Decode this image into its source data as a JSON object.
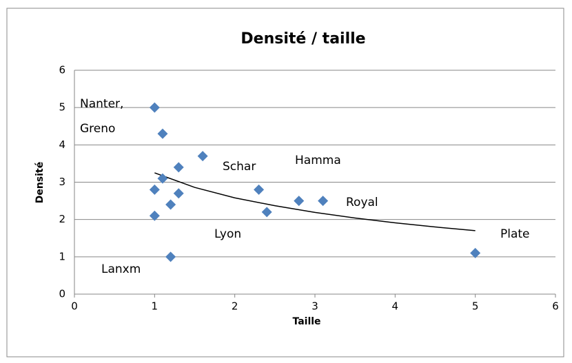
{
  "chart_data": {
    "type": "scatter",
    "title": "Densité / taille",
    "x_label": "Taille",
    "y_label": "Densité",
    "series": [
      {
        "name": "Densité",
        "color": "#4f81bd",
        "x": [
          1.0,
          1.1,
          1.6,
          1.3,
          1.1,
          1.0,
          1.3,
          1.2,
          1.0,
          1.2,
          2.3,
          2.4,
          2.8,
          3.1,
          5.0
        ],
        "values": [
          5.0,
          4.3,
          3.7,
          3.4,
          3.1,
          2.8,
          2.7,
          2.4,
          2.1,
          1.0,
          2.8,
          2.2,
          2.5,
          2.5,
          1.1
        ]
      }
    ],
    "trendline": {
      "color": "#000000",
      "x": [
        1,
        1.5,
        2,
        2.5,
        3,
        3.5,
        4,
        4.5,
        5
      ],
      "values": [
        3.25,
        2.86,
        2.58,
        2.37,
        2.19,
        2.04,
        1.91,
        1.8,
        1.7
      ]
    },
    "annotations": [
      "Nanter,",
      "Greno",
      "Schar",
      "Hamma",
      "Royal",
      "Lyon",
      "Plate",
      "Lanxm"
    ],
    "xlim": [
      0,
      6
    ],
    "xticks": [
      0,
      1,
      2,
      3,
      4,
      5,
      6
    ],
    "ylim": [
      0,
      6
    ],
    "yticks": [
      0,
      1,
      2,
      3,
      4,
      5,
      6
    ],
    "grid": true
  }
}
